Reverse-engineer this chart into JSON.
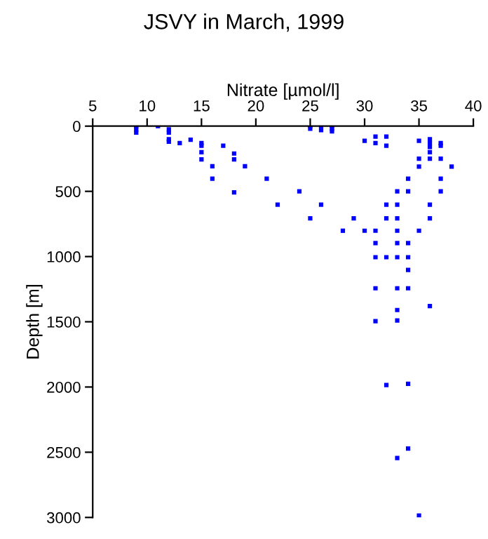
{
  "chart_data": {
    "type": "scatter",
    "title": "JSVY in March, 1999",
    "xlabel": "Nitrate [µmol/l]",
    "ylabel": "Depth [m]",
    "x": [
      9,
      9,
      9,
      11,
      12,
      12,
      12,
      12,
      13,
      14,
      15,
      15,
      15,
      15,
      16,
      16,
      17,
      18,
      18,
      18,
      19,
      21,
      22,
      25,
      25,
      26,
      26,
      27,
      27,
      27,
      30,
      31,
      31,
      32,
      32,
      35,
      36,
      36,
      36,
      36,
      36,
      37,
      37,
      37,
      35,
      35,
      38,
      34,
      37,
      24,
      33,
      34,
      37,
      26,
      32,
      33,
      36,
      25,
      29,
      32,
      33,
      36,
      28,
      30,
      31,
      33,
      35,
      31,
      33,
      34,
      31,
      32,
      33,
      34,
      34,
      31,
      33,
      34,
      36,
      33,
      31,
      33,
      32,
      34,
      34,
      33,
      35
    ],
    "series": [
      {
        "color": "#0000ff",
        "values": [
          0,
          25,
          50,
          0,
          25,
          50,
          100,
          120,
          130,
          105,
          130,
          150,
          200,
          255,
          308,
          403,
          150,
          210,
          255,
          508,
          308,
          403,
          602,
          0,
          20,
          0,
          30,
          0,
          20,
          40,
          112,
          80,
          130,
          80,
          150,
          112,
          100,
          130,
          160,
          200,
          250,
          130,
          150,
          250,
          250,
          310,
          310,
          403,
          403,
          500,
          500,
          500,
          500,
          602,
          602,
          602,
          602,
          707,
          707,
          707,
          707,
          707,
          802,
          802,
          802,
          802,
          802,
          897,
          897,
          897,
          1005,
          1005,
          1005,
          1005,
          1103,
          1243,
          1243,
          1243,
          1380,
          1410,
          1495,
          1490,
          1985,
          1975,
          2472,
          2545,
          2985
        ]
      }
    ],
    "xlim": [
      5,
      40
    ],
    "ylim": [
      3000,
      0
    ],
    "xticks": [
      5,
      10,
      15,
      20,
      25,
      30,
      35,
      40
    ],
    "yticks": [
      0,
      500,
      1000,
      1500,
      2000,
      2500,
      3000
    ],
    "marker": "square",
    "grid": false,
    "legend": false
  }
}
